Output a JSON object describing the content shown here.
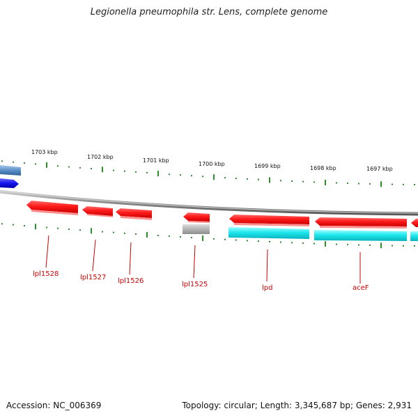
{
  "title": "Legionella pneumophila str. Lens, complete genome",
  "footer": {
    "accession": "Accession: NC_006369",
    "info": "Topology: circular; Length: 3,345,687 bp; Genes: 2,931"
  },
  "colors": {
    "backbone": "#8a8a8a",
    "tick": "#2e8b2e",
    "gene_red": "#ff1a1a",
    "gene_cyan": "#22e6e6",
    "gene_gray": "#b8b8b8",
    "gene_blue": "#1a1aee",
    "gene_steelblue": "#5a8fc8",
    "label_red": "#cc0000"
  },
  "scale_labels": [
    "1703 kbp",
    "1702 kbp",
    "1701 kbp",
    "1700 kbp",
    "1699 kbp",
    "1698 kbp",
    "1697 kbp"
  ],
  "gene_labels": [
    "lpl1528",
    "lpl1527",
    "lpl1526",
    "lpl1525",
    "lpd",
    "aceF"
  ]
}
